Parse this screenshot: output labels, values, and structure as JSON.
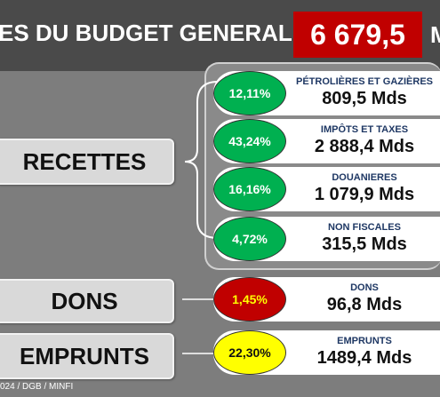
{
  "header": {
    "title": "ES  DU BUDGET GENERAL",
    "total": "6 679,5",
    "unit": "M"
  },
  "categories": {
    "recettes": "RECETTES",
    "dons": "DONS",
    "emprunts": "EMPRUNTS"
  },
  "items": [
    {
      "percent": "12,11%",
      "label": "PÉTROLIÈRES ET GAZIÈRES",
      "value": "809,5 Mds",
      "color": "#00b050"
    },
    {
      "percent": "43,24%",
      "label": "IMPÔTS ET TAXES",
      "value": "2 888,4 Mds",
      "color": "#00b050"
    },
    {
      "percent": "16,16%",
      "label": "DOUANIERES",
      "value": "1 079,9 Mds",
      "color": "#00b050"
    },
    {
      "percent": "4,72%",
      "label": "NON FISCALES",
      "value": "315,5 Mds",
      "color": "#00b050"
    },
    {
      "percent": "1,45%",
      "label": "DONS",
      "value": "96,8 Mds",
      "color": "#c00000"
    },
    {
      "percent": "22,30%",
      "label": "EMPRUNTS",
      "value": "1489,4 Mds",
      "color": "#ffff00"
    }
  ],
  "footer": "024 / DGB / MINFI"
}
